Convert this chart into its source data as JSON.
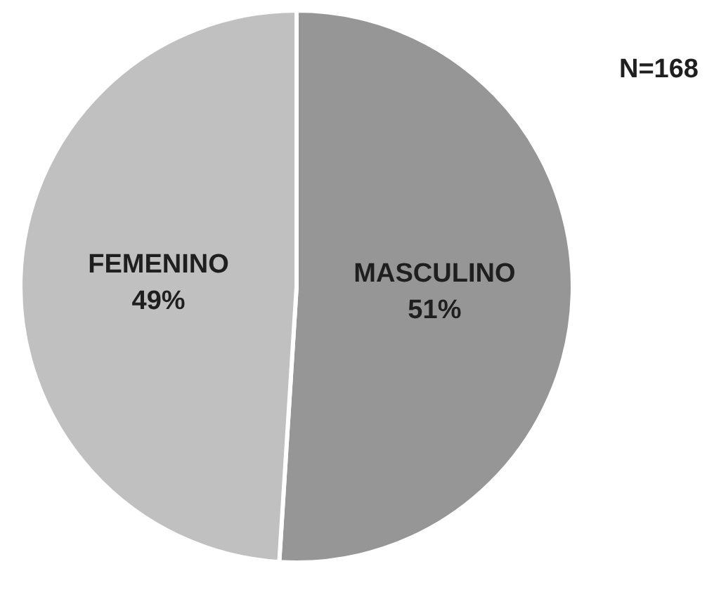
{
  "chart_data": {
    "type": "pie",
    "categories": [
      "MASCULINO",
      "FEMENINO"
    ],
    "values": [
      51,
      49
    ],
    "colors": [
      "#969696",
      "#c0c0c0"
    ],
    "value_labels": [
      "51%",
      "49%"
    ],
    "annotations": [
      "N=168"
    ]
  }
}
